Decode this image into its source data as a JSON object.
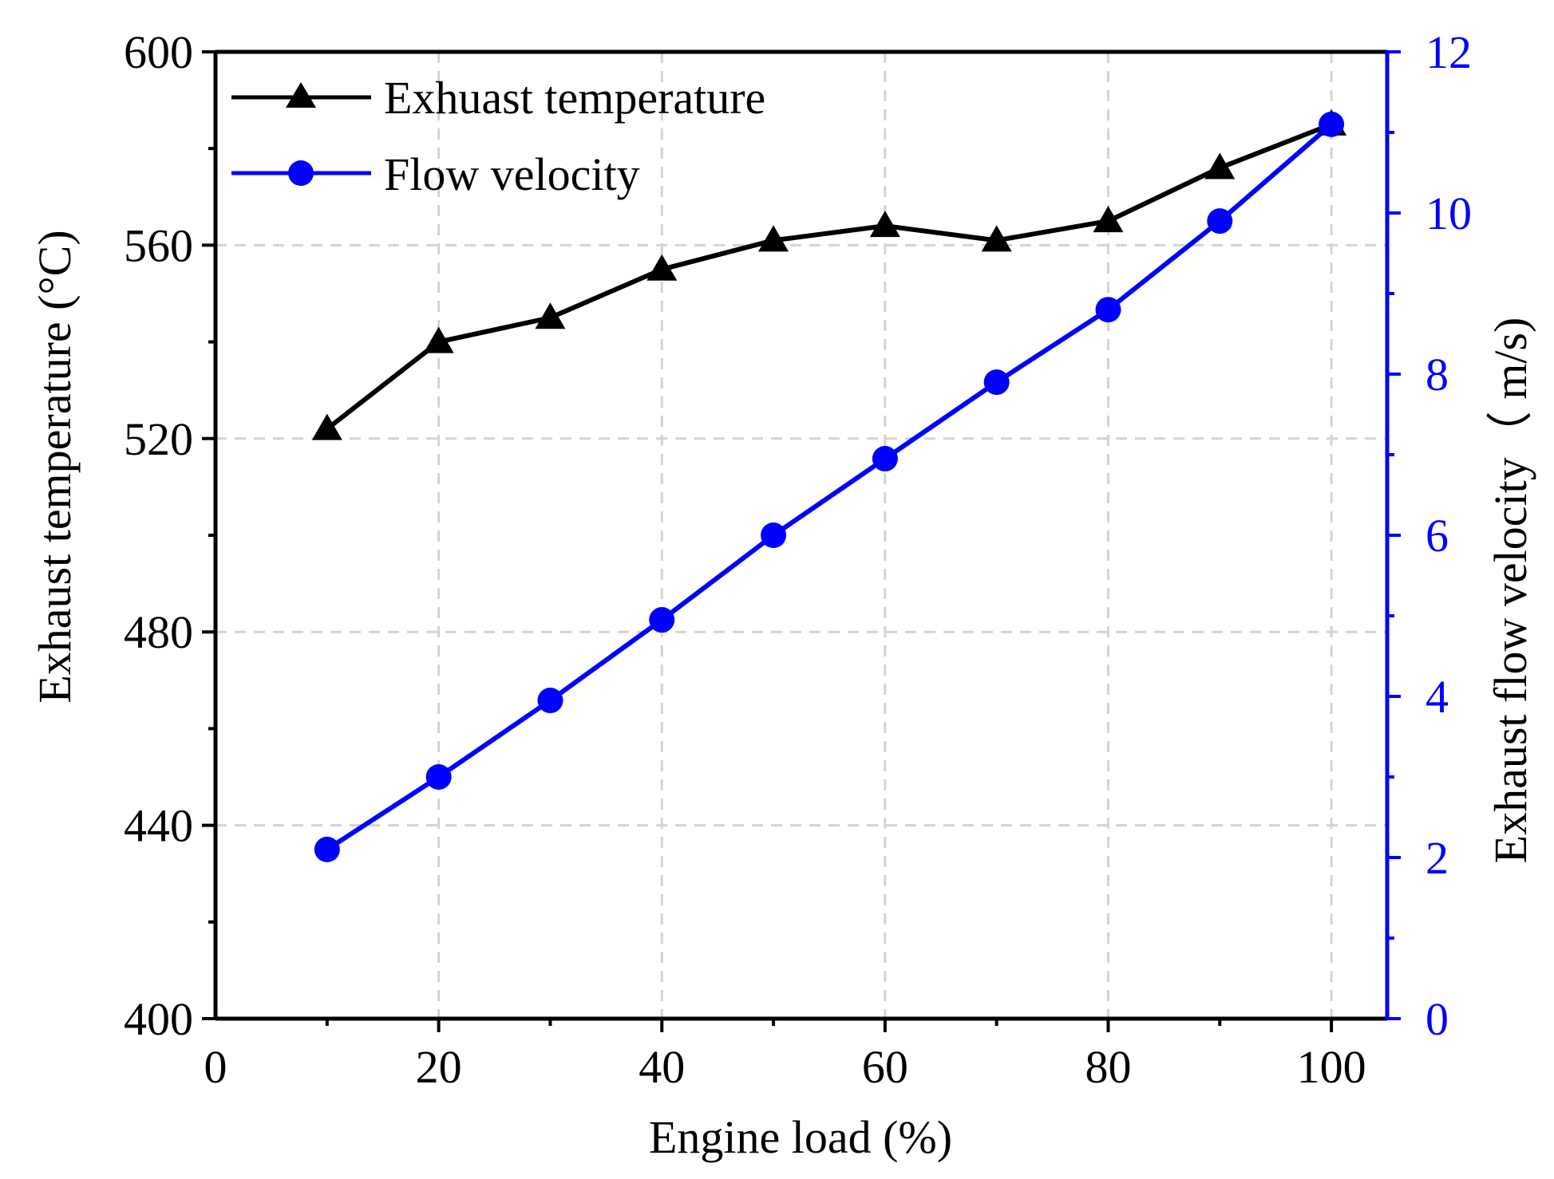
{
  "chart_data": {
    "type": "line",
    "title": "",
    "xlabel": "Engine load (%)",
    "ylabel": "Exhaust temperature (°C)",
    "y2label": "Exhaust flow velocity（ m/s)",
    "xlim": [
      0,
      105
    ],
    "ylim": [
      400,
      600
    ],
    "y2lim": [
      0,
      12
    ],
    "xticks": [
      0,
      20,
      40,
      60,
      80,
      100
    ],
    "yticks": [
      400,
      440,
      480,
      520,
      560,
      600
    ],
    "y2ticks": [
      0,
      2,
      4,
      6,
      8,
      10,
      12
    ],
    "grid": true,
    "legend_position": "top-left",
    "x": [
      10,
      20,
      30,
      40,
      50,
      60,
      70,
      80,
      90,
      100
    ],
    "series": [
      {
        "name": "Exhuast temperature",
        "axis": "left",
        "color": "#000000",
        "marker": "triangle",
        "values": [
          522,
          540,
          545,
          555,
          561,
          564,
          561,
          565,
          576,
          585
        ]
      },
      {
        "name": "Flow velocity",
        "axis": "right",
        "color": "#0000ff",
        "marker": "circle",
        "values": [
          2.1,
          3.0,
          3.95,
          4.95,
          6.0,
          6.95,
          7.9,
          8.8,
          9.9,
          11.1
        ]
      }
    ]
  }
}
